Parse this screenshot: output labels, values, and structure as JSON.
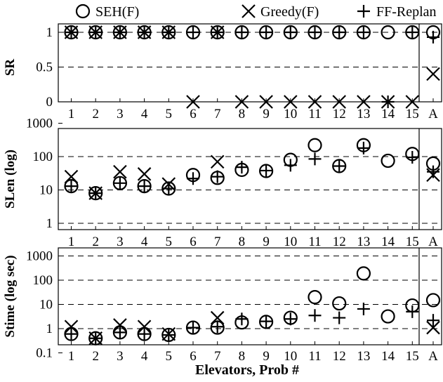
{
  "chart_data": [
    {
      "type": "scatter",
      "ylabel": "SR",
      "y_scale": "linear",
      "ylim": [
        0,
        1
      ],
      "ytick_labels": [
        "0",
        "0.5",
        "1"
      ],
      "ytick_values": [
        0,
        0.5,
        1
      ],
      "categories": [
        "1",
        "2",
        "3",
        "4",
        "5",
        "6",
        "7",
        "8",
        "9",
        "10",
        "11",
        "12",
        "13",
        "14",
        "15",
        "A"
      ],
      "series": [
        {
          "name": "SEH(F)",
          "marker": "circle",
          "values": [
            1,
            1,
            1,
            1,
            1,
            1,
            1,
            1,
            1,
            1,
            1,
            1,
            1,
            1,
            1,
            1
          ]
        },
        {
          "name": "Greedy(F)",
          "marker": "x",
          "values": [
            1,
            1,
            1,
            1,
            1,
            0,
            1,
            0,
            0,
            0,
            0,
            0,
            0,
            0,
            0,
            0.4
          ]
        },
        {
          "name": "FF-Replan",
          "marker": "plus",
          "values": [
            1,
            1,
            1,
            1,
            1,
            1,
            1,
            1,
            1,
            1,
            1,
            1,
            1,
            0,
            1,
            0.93
          ]
        }
      ],
      "grid": "dashed horizontal"
    },
    {
      "type": "scatter",
      "ylabel": "SLen (log)",
      "y_scale": "log",
      "ylim": [
        1,
        2000
      ],
      "ytick_labels": [
        "1",
        "10",
        "100",
        "1000"
      ],
      "ytick_values": [
        1,
        10,
        100,
        1000
      ],
      "categories": [
        "1",
        "2",
        "3",
        "4",
        "5",
        "6",
        "7",
        "8",
        "9",
        "10",
        "11",
        "12",
        "13",
        "14",
        "15",
        "A"
      ],
      "series": [
        {
          "name": "SEH(F)",
          "marker": "circle",
          "values": [
            13,
            8,
            16,
            13,
            11,
            28,
            23,
            40,
            37,
            80,
            220,
            52,
            220,
            75,
            120,
            62
          ]
        },
        {
          "name": "Greedy(F)",
          "marker": "x",
          "values": [
            25,
            8,
            35,
            30,
            15,
            null,
            70,
            null,
            null,
            null,
            null,
            null,
            null,
            null,
            null,
            28
          ]
        },
        {
          "name": "FF-Replan",
          "marker": "plus",
          "values": [
            13,
            8,
            16,
            13,
            11,
            22,
            25,
            48,
            38,
            55,
            85,
            52,
            180,
            null,
            95,
            35
          ]
        }
      ],
      "grid": "dashed horizontal"
    },
    {
      "type": "scatter",
      "ylabel": "Stime (log sec)",
      "y_scale": "log",
      "ylim": [
        0.1,
        1000
      ],
      "ytick_labels": [
        "0.1",
        "1",
        "10",
        "100",
        "1000"
      ],
      "ytick_values": [
        0.1,
        1,
        10,
        100,
        1000
      ],
      "categories": [
        "1",
        "2",
        "3",
        "4",
        "5",
        "6",
        "7",
        "8",
        "9",
        "10",
        "11",
        "12",
        "13",
        "14",
        "15",
        "A"
      ],
      "series": [
        {
          "name": "SEH(F)",
          "marker": "circle",
          "values": [
            0.6,
            0.4,
            0.7,
            0.6,
            0.55,
            1.1,
            1.1,
            1.8,
            1.9,
            2.8,
            20,
            11,
            190,
            3.2,
            9,
            15
          ]
        },
        {
          "name": "Greedy(F)",
          "marker": "x",
          "values": [
            1.2,
            0.4,
            1.4,
            1.2,
            0.6,
            null,
            2.8,
            null,
            null,
            null,
            null,
            null,
            null,
            null,
            null,
            1.1
          ]
        },
        {
          "name": "FF-Replan",
          "marker": "plus",
          "values": [
            0.6,
            0.4,
            0.7,
            0.6,
            0.55,
            1.1,
            1.2,
            2.5,
            2.0,
            2.5,
            3.5,
            2.8,
            6.5,
            null,
            5.0,
            2.2
          ]
        }
      ],
      "grid": "dashed horizontal"
    }
  ],
  "legend": [
    {
      "label": "SEH(F)",
      "marker": "circle"
    },
    {
      "label": "Greedy(F)",
      "marker": "x"
    },
    {
      "label": "FF-Replan",
      "marker": "plus"
    }
  ],
  "xlabel": "Elevators, Prob #"
}
